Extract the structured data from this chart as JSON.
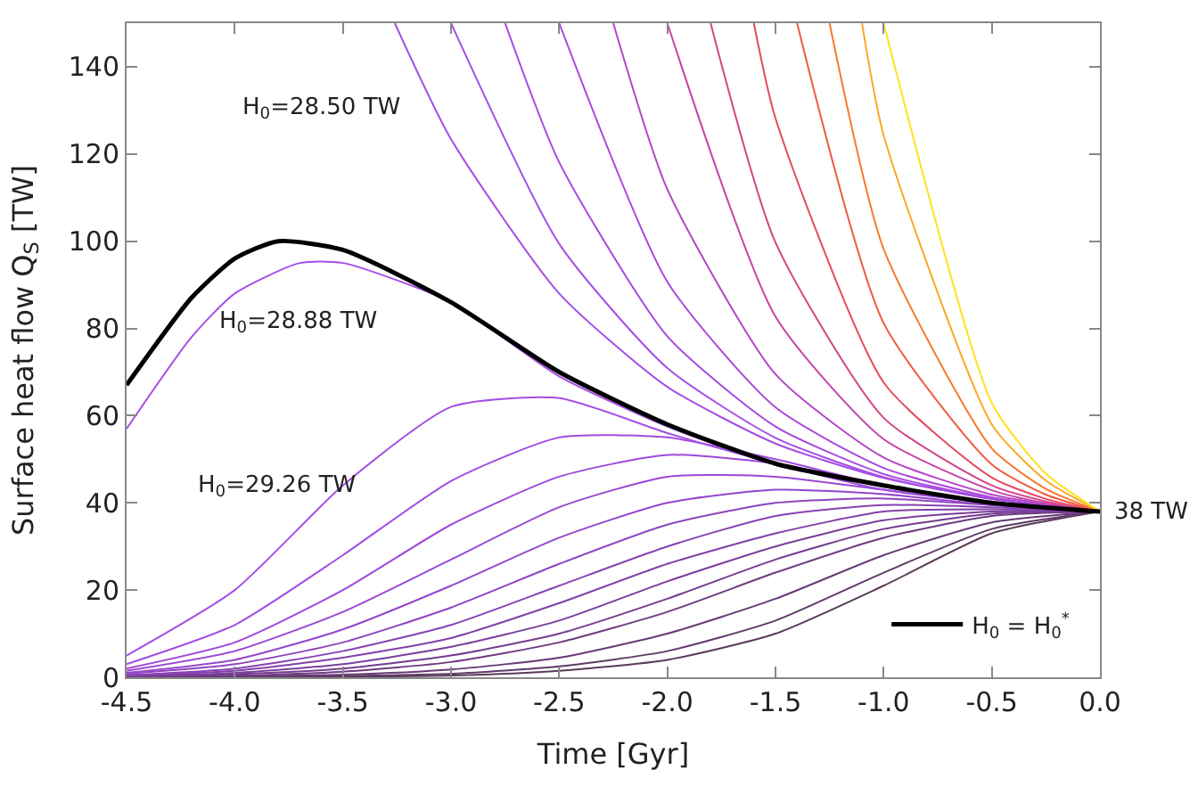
{
  "chart_data": {
    "type": "line",
    "xlabel": "Time [Gyr]",
    "ylabel": "Surface heat flow Q$_{S}$ [TW]",
    "xlim": [
      -4.5,
      0.0
    ],
    "ylim": [
      0,
      150
    ],
    "xticks": [
      {
        "value": -4.5,
        "label": "-4.5"
      },
      {
        "value": -4.0,
        "label": "-4.0"
      },
      {
        "value": -3.5,
        "label": "-3.5"
      },
      {
        "value": -3.0,
        "label": "-3.0"
      },
      {
        "value": -2.5,
        "label": "-2.5"
      },
      {
        "value": -2.0,
        "label": "-2.0"
      },
      {
        "value": -1.5,
        "label": "-1.5"
      },
      {
        "value": -1.0,
        "label": "-1.0"
      },
      {
        "value": -0.5,
        "label": "-0.5"
      },
      {
        "value": 0.0,
        "label": "0.0"
      }
    ],
    "yticks": [
      0,
      20,
      40,
      60,
      80,
      100,
      120,
      140
    ],
    "legend": "bottom right",
    "marker": "none",
    "line_style": "solid",
    "annotations": [
      "H$_{0}$=28.50 TW",
      "H$_{0}$=28.88 TW",
      "H$_{0}$=29.26 TW",
      {
        "text": "38 TW",
        "x": 0.0,
        "y": 38
      }
    ],
    "series": [
      {
        "color": "#5a3a5a",
        "x": [
          -4.5,
          -4.0,
          -3.5,
          -3.0,
          -2.5,
          -2.0,
          -1.5,
          -1.0,
          -0.5,
          0.0
        ],
        "values": [
          0,
          0,
          0.1,
          0.4,
          1.5,
          4,
          10,
          21,
          33,
          38
        ]
      },
      {
        "color": "#603a68",
        "x": [
          -4.5,
          -4.0,
          -3.5,
          -3.0,
          -2.5,
          -2.0,
          -1.5,
          -1.0,
          -0.5,
          0.0
        ],
        "values": [
          0,
          0.1,
          0.3,
          0.8,
          2.5,
          6,
          13,
          24,
          34,
          38
        ]
      },
      {
        "color": "#673a75",
        "x": [
          -4.5,
          -4.0,
          -3.5,
          -3.0,
          -2.5,
          -2.0,
          -1.5,
          -1.0,
          -0.5,
          0.0
        ],
        "values": [
          0,
          0.2,
          0.6,
          1.8,
          4.5,
          10,
          18,
          28,
          35.5,
          38
        ]
      },
      {
        "color": "#6e3b82",
        "x": [
          -4.5,
          -4.0,
          -3.5,
          -3.0,
          -2.5,
          -2.0,
          -1.5,
          -1.0,
          -0.5,
          0.0
        ],
        "values": [
          0.1,
          0.4,
          1.3,
          3.5,
          8,
          15,
          24,
          32,
          37,
          38
        ]
      },
      {
        "color": "#743c8f",
        "x": [
          -4.5,
          -4.0,
          -3.5,
          -3.0,
          -2.5,
          -2.0,
          -1.5,
          -1.0,
          -0.5,
          0.0
        ],
        "values": [
          0.2,
          0.7,
          2,
          5,
          10,
          18,
          27,
          34,
          37.5,
          38
        ]
      },
      {
        "color": "#7b3e9c",
        "x": [
          -4.5,
          -4.0,
          -3.5,
          -3.0,
          -2.5,
          -2.0,
          -1.5,
          -1.0,
          -0.5,
          0.0
        ],
        "values": [
          0.3,
          1,
          3,
          7,
          13,
          22,
          30,
          36,
          38,
          38
        ]
      },
      {
        "color": "#8240a8",
        "x": [
          -4.5,
          -4.0,
          -3.5,
          -3.0,
          -2.5,
          -2.0,
          -1.5,
          -1.0,
          -0.5,
          0.0
        ],
        "values": [
          0.4,
          1.5,
          4.5,
          9,
          17,
          26,
          33,
          38,
          38.5,
          38
        ]
      },
      {
        "color": "#8842b4",
        "x": [
          -4.5,
          -4.0,
          -3.5,
          -3.0,
          -2.5,
          -2.0,
          -1.5,
          -1.0,
          -0.5,
          0.0
        ],
        "values": [
          0.5,
          2,
          6,
          12,
          21,
          30,
          37,
          39.5,
          39,
          38
        ]
      },
      {
        "color": "#8e44c0",
        "x": [
          -4.5,
          -4.0,
          -3.5,
          -3.0,
          -2.5,
          -2.0,
          -1.5,
          -1.0,
          -0.5,
          0.0
        ],
        "values": [
          0.8,
          3,
          8,
          16,
          26,
          35,
          40,
          41,
          39.5,
          38
        ]
      },
      {
        "color": "#9446ca",
        "x": [
          -4.5,
          -4.0,
          -3.5,
          -3.0,
          -2.5,
          -2.0,
          -1.5,
          -1.0,
          -0.5,
          0.0
        ],
        "values": [
          1,
          4,
          11,
          21,
          32,
          40,
          43,
          42,
          39.5,
          38
        ]
      },
      {
        "color": "#9a48d4",
        "x": [
          -4.5,
          -4.0,
          -3.5,
          -3.0,
          -2.5,
          -2.0,
          -1.5,
          -1.0,
          -0.5,
          0.0
        ],
        "values": [
          1.5,
          6,
          15,
          27,
          39,
          46,
          46,
          43,
          40,
          38
        ]
      },
      {
        "color": "#9e4adc",
        "x": [
          -4.5,
          -4.0,
          -3.5,
          -3.0,
          -2.5,
          -2.0,
          -1.5,
          -1.0,
          -0.5,
          0.0
        ],
        "values": [
          2,
          8,
          20,
          35,
          46,
          51,
          49,
          44,
          40,
          38
        ]
      },
      {
        "color": "#a24ce2",
        "x": [
          -4.5,
          -4.0,
          -3.5,
          -3.0,
          -2.5,
          -2.0,
          -1.5,
          -1.0,
          -0.5,
          0.0
        ],
        "values": [
          3,
          12,
          28,
          45,
          55,
          55,
          50,
          44,
          40,
          38
        ]
      },
      {
        "color": "#a44ee6",
        "x": [
          -4.5,
          -4.0,
          -3.5,
          -3.0,
          -2.5,
          -2.0,
          -1.5,
          -1.0,
          -0.5,
          0.0
        ],
        "values": [
          5,
          20,
          44,
          62,
          64,
          56,
          49,
          43,
          40,
          38
        ]
      },
      {
        "color": "#a44ee6",
        "x": [
          -4.5,
          -4.2,
          -4.0,
          -3.7,
          -3.5,
          -3.0,
          -2.5,
          -2.0,
          -1.5,
          -1.0,
          -0.5,
          0.0
        ],
        "values": [
          57,
          78,
          88,
          95,
          95,
          86,
          69,
          57.5,
          48.8,
          43.8,
          39.9,
          38
        ]
      },
      {
        "color": "#a44ee6",
        "x": [
          -3.26,
          -3.0,
          -2.5,
          -2.0,
          -1.5,
          -1.0,
          -0.5,
          0.0
        ],
        "values": [
          150,
          123.4,
          88,
          66.6,
          53.6,
          45.7,
          40.9,
          38
        ]
      },
      {
        "color": "#a44ee6",
        "x": [
          -3.0,
          -2.5,
          -2.0,
          -1.5,
          -1.0,
          -0.5,
          0.0
        ],
        "values": [
          150,
          99.4,
          70.9,
          54.9,
          45.9,
          40.9,
          38
        ]
      },
      {
        "color": "#a64ae0",
        "x": [
          -2.75,
          -2.5,
          -2.0,
          -1.5,
          -1.0,
          -0.5,
          0.0
        ],
        "values": [
          150,
          118.1,
          78.2,
          57.5,
          46.6,
          41.0,
          38
        ]
      },
      {
        "color": "#aa48d8",
        "x": [
          -2.5,
          -2.0,
          -1.5,
          -1.0,
          -0.5,
          0.0
        ],
        "values": [
          150,
          90.7,
          61.9,
          48.0,
          41.3,
          38
        ]
      },
      {
        "color": "#b446c8",
        "x": [
          -2.25,
          -2.0,
          -1.5,
          -1.0,
          -0.5,
          0.0
        ],
        "values": [
          150,
          111.9,
          69.5,
          50.4,
          41.9,
          38
        ]
      },
      {
        "color": "#c444a8",
        "x": [
          -2.0,
          -1.5,
          -1.0,
          -0.5,
          -0.25,
          0.0
        ],
        "values": [
          150,
          82.7,
          54.6,
          42.9,
          39.9,
          38
        ]
      },
      {
        "color": "#d44488",
        "x": [
          -1.8,
          -1.5,
          -1.0,
          -0.5,
          -0.25,
          0.0
        ],
        "values": [
          150,
          99.7,
          59.5,
          44.0,
          40.3,
          38
        ]
      },
      {
        "color": "#e44a60",
        "x": [
          -1.6,
          -1.5,
          -1.0,
          -0.5,
          -0.25,
          0.0
        ],
        "values": [
          150,
          128.2,
          67.6,
          45.8,
          40.9,
          38
        ]
      },
      {
        "color": "#f05a40",
        "x": [
          -1.4,
          -1.0,
          -0.5,
          -0.25,
          0.0
        ],
        "values": [
          150,
          81.2,
          48.8,
          41.9,
          38
        ]
      },
      {
        "color": "#f87a30",
        "x": [
          -1.25,
          -1.0,
          -0.5,
          -0.25,
          0.0
        ],
        "values": [
          150,
          98.2,
          52.5,
          43.2,
          38
        ]
      },
      {
        "color": "#fca828",
        "x": [
          -1.1,
          -1.0,
          -0.5,
          -0.25,
          0.0
        ],
        "values": [
          150,
          124.3,
          58.0,
          45.1,
          38
        ]
      },
      {
        "color": "#ffe020",
        "x": [
          -1.0,
          -0.5,
          -0.25,
          0.0
        ],
        "values": [
          150,
          62.9,
          46.7,
          38
        ]
      },
      {
        "name": "H$_{0}$ = H$_{0}$$^{*}$",
        "color": "#000000",
        "x": [
          -4.5,
          -4.2,
          -4.0,
          -3.8,
          -3.5,
          -3.0,
          -2.5,
          -2.0,
          -1.5,
          -1.0,
          -0.5,
          0.0
        ],
        "values": [
          67,
          87,
          96,
          100,
          98,
          86,
          70,
          58,
          49,
          44,
          40,
          38
        ]
      }
    ]
  }
}
